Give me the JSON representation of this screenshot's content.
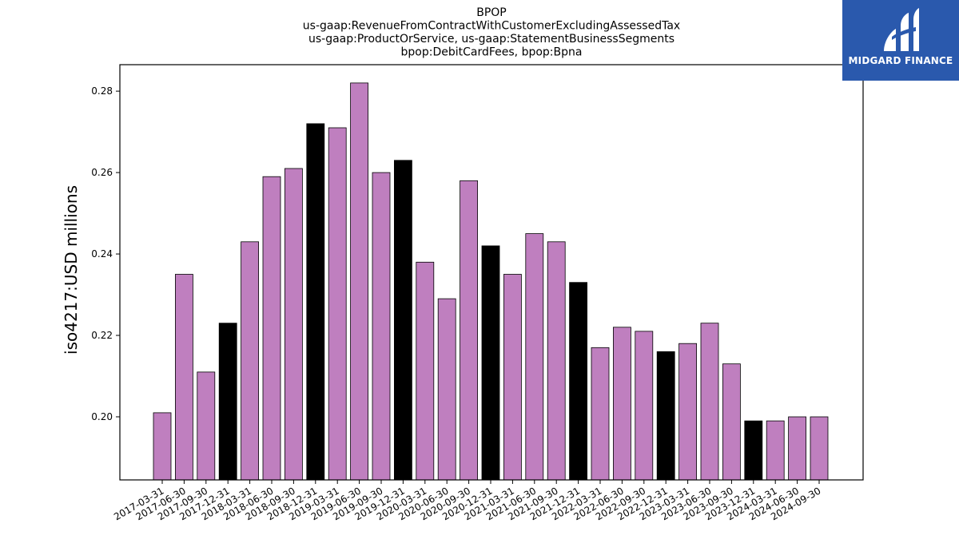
{
  "chart_data": {
    "type": "bar",
    "title": [
      "BPOP",
      "us-gaap:RevenueFromContractWithCustomerExcludingAssessedTax",
      "us-gaap:ProductOrService, us-gaap:StatementBusinessSegments",
      "bpop:DebitCardFees, bpop:Bpna"
    ],
    "xlabel": "",
    "ylabel": "iso4217:USD  millions",
    "ylim": [
      0.1845,
      0.2865
    ],
    "yticks": [
      "0.20",
      "0.22",
      "0.24",
      "0.26",
      "0.28"
    ],
    "ytick_values": [
      0.2,
      0.22,
      0.24,
      0.26,
      0.28
    ],
    "grid": false,
    "colors": {
      "regular": "#bf7fbf",
      "year_end": "#000000",
      "edge": "#000000"
    },
    "categories": [
      "2017-03-31",
      "2017-06-30",
      "2017-09-30",
      "2017-12-31",
      "2018-03-31",
      "2018-06-30",
      "2018-09-30",
      "2018-12-31",
      "2019-03-31",
      "2019-06-30",
      "2019-09-30",
      "2019-12-31",
      "2020-03-31",
      "2020-06-30",
      "2020-09-30",
      "2020-12-31",
      "2021-03-31",
      "2021-06-30",
      "2021-09-30",
      "2021-12-31",
      "2022-03-31",
      "2022-06-30",
      "2022-09-30",
      "2022-12-31",
      "2023-03-31",
      "2023-06-30",
      "2023-09-30",
      "2023-12-31",
      "2024-03-31",
      "2024-06-30",
      "2024-09-30"
    ],
    "values": [
      0.201,
      0.235,
      0.211,
      0.223,
      0.243,
      0.259,
      0.261,
      0.272,
      0.271,
      0.282,
      0.26,
      0.263,
      0.238,
      0.229,
      0.258,
      0.242,
      0.235,
      0.245,
      0.243,
      0.233,
      0.217,
      0.222,
      0.221,
      0.216,
      0.218,
      0.223,
      0.213,
      0.199,
      0.199,
      0.2,
      0.2
    ]
  },
  "logo": {
    "text": "MIDGARD FINANCE",
    "icon": "midgard-logo-icon"
  }
}
